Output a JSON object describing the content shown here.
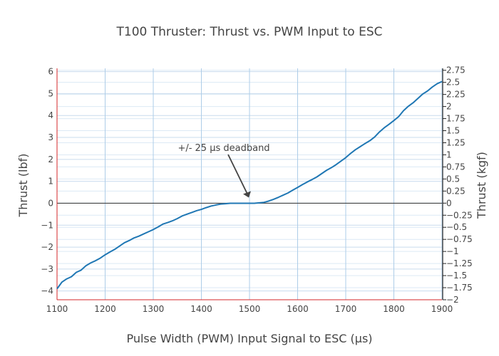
{
  "chart_data": {
    "type": "line",
    "title": "T100 Thruster: Thrust vs. PWM Input to ESC",
    "xlabel": "Pulse Width (PWM) Input Signal to ESC (μs)",
    "ylabel": "Thrust (lbf)",
    "y2label": "Thrust (kgf)",
    "xlim": [
      1100,
      1900
    ],
    "ylim": [
      -4.4,
      6.15
    ],
    "y2lim": [
      -2.0,
      2.79
    ],
    "xticks": [
      "1100",
      "1200",
      "1300",
      "1400",
      "1500",
      "1600",
      "1700",
      "1800",
      "1900"
    ],
    "yticks": [
      "−4",
      "−3",
      "−2",
      "−1",
      "0",
      "1",
      "2",
      "3",
      "4",
      "5",
      "6"
    ],
    "y2ticks": [
      "−2",
      "−1.75",
      "−1.5",
      "−1.25",
      "−1",
      "−0.75",
      "−0.5",
      "−0.25",
      "0",
      "0.25",
      "0.5",
      "0.75",
      "1",
      "1.25",
      "1.5",
      "1.75",
      "2",
      "2.25",
      "2.5",
      "2.75"
    ],
    "grid": true,
    "line_color": "#1f77b4",
    "annotation": {
      "text": "+/- 25 μs deadband",
      "x": 1500,
      "y": 0
    },
    "series": [
      {
        "x": [
          1100,
          1110,
          1120,
          1130,
          1140,
          1150,
          1160,
          1170,
          1180,
          1190,
          1200,
          1210,
          1220,
          1230,
          1240,
          1250,
          1260,
          1270,
          1280,
          1290,
          1300,
          1310,
          1320,
          1330,
          1340,
          1350,
          1360,
          1370,
          1380,
          1390,
          1400,
          1410,
          1420,
          1430,
          1440,
          1450,
          1460,
          1470,
          1480,
          1490,
          1500,
          1510,
          1520,
          1530,
          1540,
          1550,
          1560,
          1570,
          1580,
          1590,
          1600,
          1610,
          1620,
          1630,
          1640,
          1650,
          1660,
          1670,
          1680,
          1690,
          1700,
          1710,
          1720,
          1730,
          1740,
          1750,
          1760,
          1770,
          1780,
          1790,
          1800,
          1810,
          1820,
          1830,
          1840,
          1850,
          1860,
          1870,
          1880,
          1890,
          1900
        ],
        "y": [
          -3.9,
          -3.6,
          -3.45,
          -3.35,
          -3.15,
          -3.05,
          -2.85,
          -2.72,
          -2.62,
          -2.5,
          -2.35,
          -2.22,
          -2.1,
          -1.95,
          -1.8,
          -1.7,
          -1.58,
          -1.5,
          -1.4,
          -1.3,
          -1.2,
          -1.08,
          -0.95,
          -0.88,
          -0.8,
          -0.7,
          -0.58,
          -0.5,
          -0.42,
          -0.34,
          -0.28,
          -0.2,
          -0.13,
          -0.08,
          -0.04,
          -0.02,
          0.0,
          0.0,
          0.0,
          0.0,
          0.0,
          0.0,
          0.02,
          0.04,
          0.1,
          0.18,
          0.27,
          0.37,
          0.47,
          0.6,
          0.72,
          0.85,
          0.97,
          1.08,
          1.2,
          1.35,
          1.5,
          1.62,
          1.76,
          1.92,
          2.08,
          2.27,
          2.44,
          2.58,
          2.72,
          2.85,
          3.02,
          3.25,
          3.44,
          3.6,
          3.77,
          3.95,
          4.22,
          4.42,
          4.58,
          4.78,
          4.98,
          5.12,
          5.3,
          5.45,
          5.55
        ]
      }
    ]
  }
}
